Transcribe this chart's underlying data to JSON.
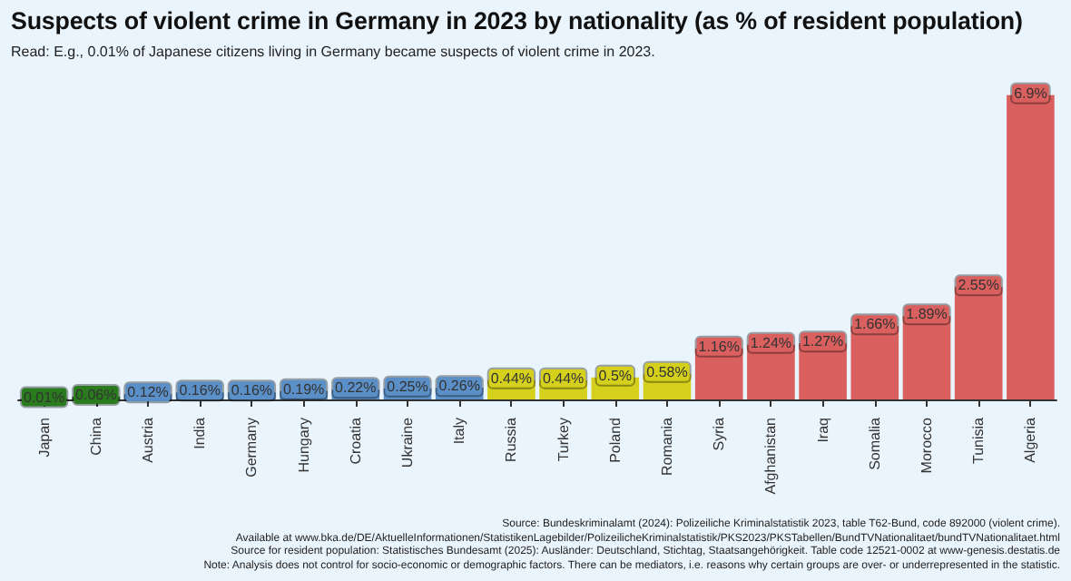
{
  "chart_data": {
    "type": "bar",
    "title": "Suspects of violent crime in Germany in 2023 by nationality (as % of resident population)",
    "subtitle": "Read: E.g., 0.01% of Japanese citizens living in Germany became suspects of violent crime in 2023.",
    "categories": [
      "Japan",
      "China",
      "Austria",
      "India",
      "Germany",
      "Hungary",
      "Croatia",
      "Ukraine",
      "Italy",
      "Russia",
      "Turkey",
      "Poland",
      "Romania",
      "Syria",
      "Afghanistan",
      "Iraq",
      "Somalia",
      "Morocco",
      "Tunisia",
      "Algeria"
    ],
    "values": [
      0.01,
      0.06,
      0.12,
      0.16,
      0.16,
      0.19,
      0.22,
      0.25,
      0.26,
      0.44,
      0.44,
      0.5,
      0.58,
      1.16,
      1.24,
      1.27,
      1.66,
      1.89,
      2.55,
      6.9
    ],
    "value_labels": [
      "0.01%",
      "0.06%",
      "0.12%",
      "0.16%",
      "0.16%",
      "0.19%",
      "0.22%",
      "0.25%",
      "0.26%",
      "0.44%",
      "0.44%",
      "0.5%",
      "0.58%",
      "1.16%",
      "1.24%",
      "1.27%",
      "1.66%",
      "1.89%",
      "2.55%",
      "6.9%"
    ],
    "colors": [
      "#2a7a1e",
      "#2a7a1e",
      "#5b8fc7",
      "#5b8fc7",
      "#5b8fc7",
      "#5b8fc7",
      "#5b8fc7",
      "#5b8fc7",
      "#5b8fc7",
      "#d4d01c",
      "#d4d01c",
      "#d4d01c",
      "#d4d01c",
      "#d9605e",
      "#d9605e",
      "#d9605e",
      "#d9605e",
      "#d9605e",
      "#d9605e",
      "#d9605e"
    ],
    "tick_labels": "x",
    "annotations": [
      "Source: Bundeskriminalamt (2024): Polizeiliche Kriminalstatistik 2023, table T62-Bund, code 892000 (violent crime).",
      "Available at www.bka.de/DE/AktuelleInformationen/StatistikenLagebilder/PolizeilicheKriminalstatistik/PKS2023/PKSTabellen/BundTVNationalitaet/bundTVNationalitaet.html",
      "Source for resident population: Statistisches Bundesamt (2025): Ausländer: Deutschland, Stichtag, Staatsangehörigkeit. Table code 12521-0002 at www-genesis.destatis.de",
      "Note: Analysis does not control for socio-economic or demographic factors. There can be mediators, i.e. reasons why certain groups are over- or underrepresented in the statistic."
    ]
  }
}
